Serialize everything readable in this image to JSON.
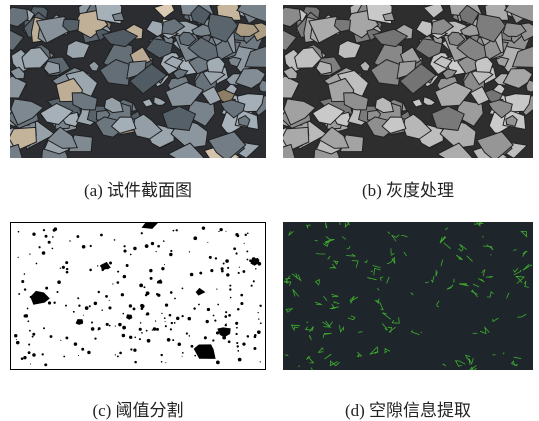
{
  "figures": [
    {
      "caption": "(a) 试件截面图"
    },
    {
      "caption": "(b) 灰度处理"
    },
    {
      "caption": "(c) 阈值分割"
    },
    {
      "caption": "(d) 空隙信息提取"
    }
  ]
}
